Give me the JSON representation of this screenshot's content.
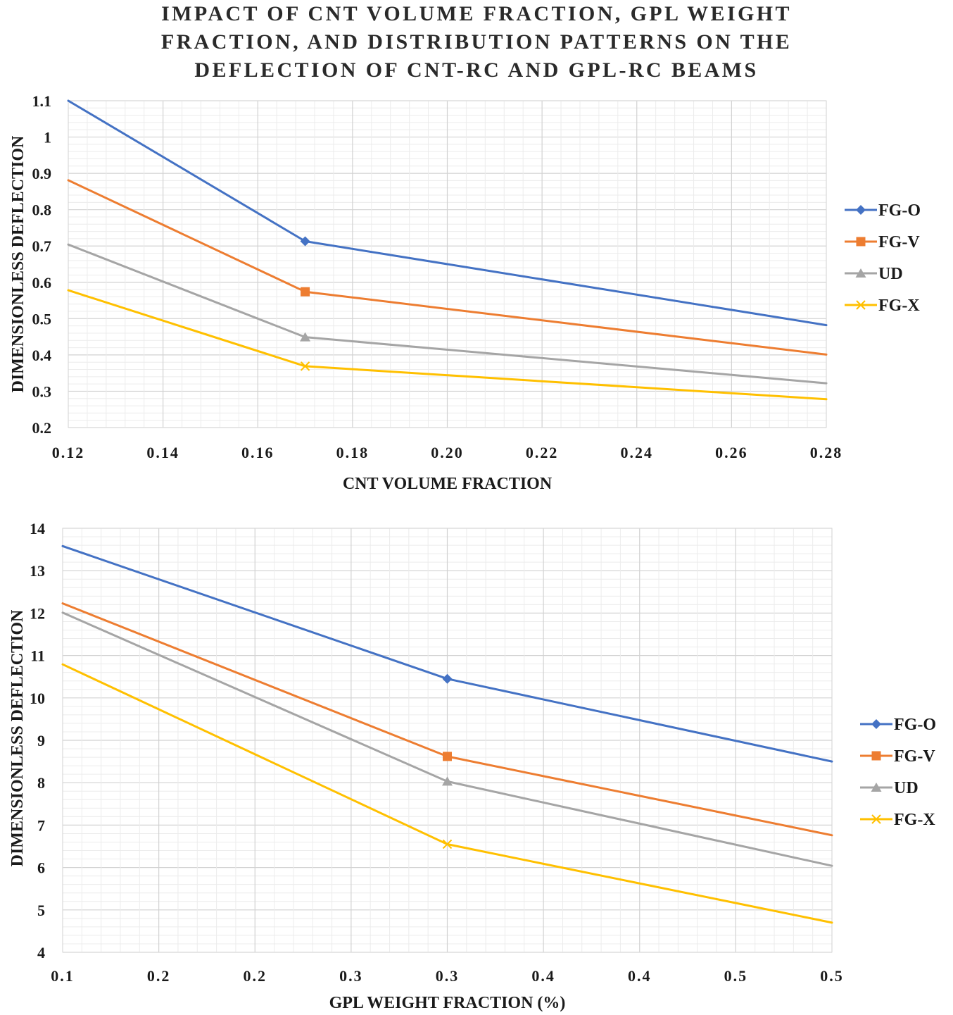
{
  "title_lines": [
    "IMPACT OF CNT VOLUME FRACTION, GPL WEIGHT",
    "FRACTION, AND DISTRIBUTION PATTERNS ON THE",
    "DEFLECTION OF CNT-RC AND GPL-RC BEAMS"
  ],
  "colors": {
    "FG-O": "#4472C4",
    "FG-V": "#ED7D31",
    "UD": "#A5A5A5",
    "FG-X": "#FFC000"
  },
  "chart_data": [
    {
      "type": "line",
      "xlabel": "CNT VOLUME FRACTION",
      "ylabel": "DIMENSIONLESS DEFLECTION",
      "x_tick_labels": [
        "0.12",
        "0.14",
        "0.16",
        "0.18",
        "0.20",
        "0.22",
        "0.24",
        "0.26",
        "0.28"
      ],
      "y_tick_labels": [
        "0.2",
        "0.3",
        "0.4",
        "0.5",
        "0.6",
        "0.7",
        "0.8",
        "0.9",
        "1",
        "1.1"
      ],
      "xlim": [
        0.12,
        0.28
      ],
      "ylim": [
        0.2,
        1.1
      ],
      "x": [
        0.12,
        0.17,
        0.28
      ],
      "series": [
        {
          "name": "FG-O",
          "marker": "diamond",
          "values": [
            1.1,
            0.713,
            0.482
          ]
        },
        {
          "name": "FG-V",
          "marker": "square",
          "values": [
            0.881,
            0.574,
            0.401
          ]
        },
        {
          "name": "UD",
          "marker": "triangle",
          "values": [
            0.704,
            0.449,
            0.322
          ]
        },
        {
          "name": "FG-X",
          "marker": "x",
          "values": [
            0.578,
            0.369,
            0.278
          ]
        }
      ],
      "legend": "right"
    },
    {
      "type": "line",
      "xlabel": "GPL WEIGHT FRACTION (%)",
      "ylabel": "DIMENSIONLESS DEFLECTION",
      "x_tick_labels": [
        "0.1",
        "0.2",
        "0.2",
        "0.3",
        "0.3",
        "0.4",
        "0.4",
        "0.5",
        "0.5"
      ],
      "y_tick_labels": [
        "4",
        "5",
        "6",
        "7",
        "8",
        "9",
        "10",
        "11",
        "12",
        "13",
        "14"
      ],
      "xlim": [
        0.1,
        0.5
      ],
      "ylim": [
        4,
        14
      ],
      "x": [
        0.1,
        0.3,
        0.5
      ],
      "series": [
        {
          "name": "FG-O",
          "marker": "diamond",
          "values": [
            13.58,
            10.45,
            8.5
          ]
        },
        {
          "name": "FG-V",
          "marker": "square",
          "values": [
            12.23,
            8.62,
            6.76
          ]
        },
        {
          "name": "UD",
          "marker": "triangle",
          "values": [
            12.01,
            8.03,
            6.04
          ]
        },
        {
          "name": "FG-X",
          "marker": "x",
          "values": [
            10.79,
            6.55,
            4.7
          ]
        }
      ],
      "legend": "right"
    }
  ]
}
